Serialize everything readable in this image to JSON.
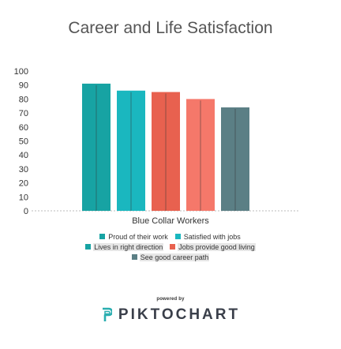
{
  "chart_data": {
    "type": "bar",
    "title": "Career and Life Satisfaction",
    "categories": [
      "Blue Collar Workers"
    ],
    "yticks": [
      "0",
      "10",
      "20",
      "30",
      "40",
      "50",
      "60",
      "70",
      "80",
      "90",
      "100"
    ],
    "ylim": [
      0,
      100
    ],
    "grid": false,
    "legend_position": "bottom",
    "series": [
      {
        "name": "Proud of their work",
        "values": [
          91
        ],
        "color": "#17a3a3"
      },
      {
        "name": "Satisfied with jobs",
        "values": [
          86
        ],
        "color": "#1ab7bf"
      },
      {
        "name": "Lives in right direction",
        "values": [
          85
        ],
        "color": "#e8614f"
      },
      {
        "name": "Jobs provide good living",
        "values": [
          80
        ],
        "color": "#f5786a"
      },
      {
        "name": "See good career path",
        "values": [
          74
        ],
        "color": "#5b7f85"
      }
    ]
  },
  "footer": {
    "powered_by": "powered by",
    "brand": "PIKTOCHART"
  }
}
